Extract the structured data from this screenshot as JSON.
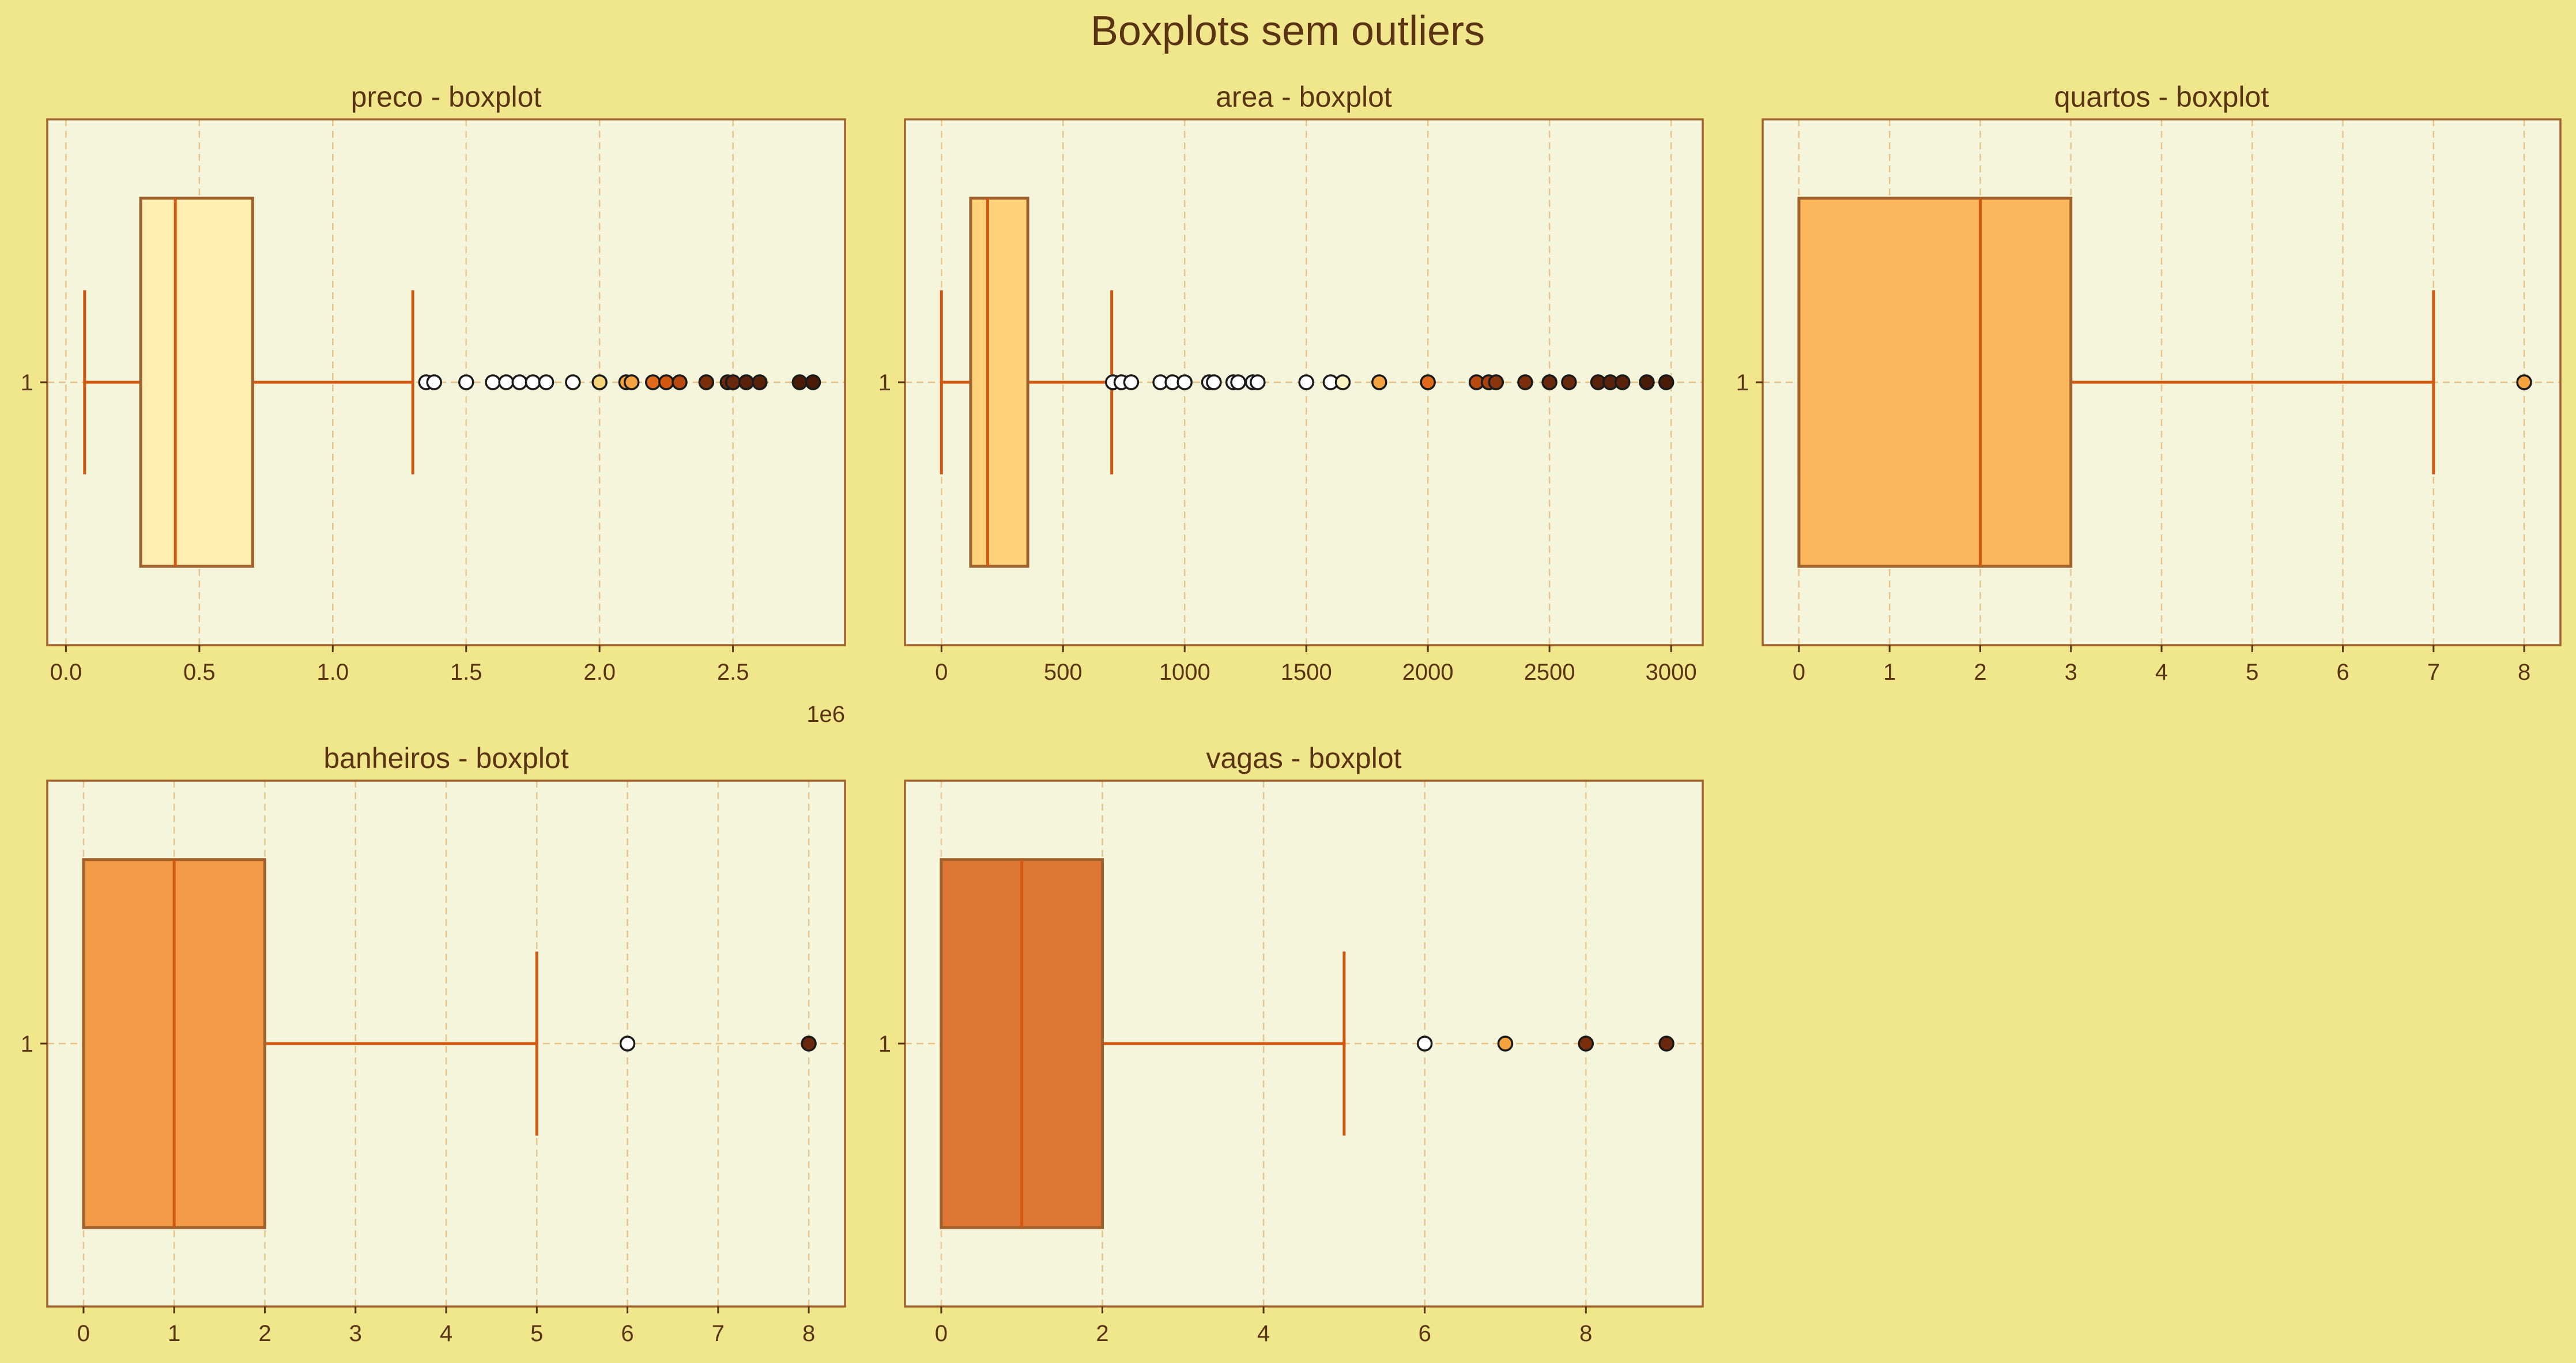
{
  "title": "Boxplots sem outliers",
  "colors": {
    "figure_bg": "#f0e68c",
    "axes_bg": "#f5f5dc",
    "spine": "#a0622d",
    "grid": "#e8c48a",
    "median_whisker": "#d2580f",
    "text": "#5a3312",
    "box_edge": "#a0622d"
  },
  "chart_data": [
    {
      "type": "boxplot",
      "title": "preco - boxplot",
      "orientation": "horizontal",
      "category": "1",
      "box_color": "#ffeeb0",
      "stats": {
        "whislo": 70000,
        "q1": 280000,
        "med": 410000,
        "q3": 700000,
        "whishi": 1300000
      },
      "outliers": [
        {
          "v": 1350000,
          "c": "#ffffff"
        },
        {
          "v": 1380000,
          "c": "#ffffff"
        },
        {
          "v": 1500000,
          "c": "#ffffff"
        },
        {
          "v": 1600000,
          "c": "#ffffff"
        },
        {
          "v": 1650000,
          "c": "#ffffff"
        },
        {
          "v": 1700000,
          "c": "#ffffff"
        },
        {
          "v": 1750000,
          "c": "#ffffff"
        },
        {
          "v": 1800000,
          "c": "#ffffff"
        },
        {
          "v": 1900000,
          "c": "#ffffff"
        },
        {
          "v": 2000000,
          "c": "#f5d27a"
        },
        {
          "v": 2100000,
          "c": "#f4a340"
        },
        {
          "v": 2120000,
          "c": "#f4a340"
        },
        {
          "v": 2200000,
          "c": "#e06a1c"
        },
        {
          "v": 2250000,
          "c": "#d2580f"
        },
        {
          "v": 2300000,
          "c": "#b84a10"
        },
        {
          "v": 2400000,
          "c": "#7a2e0c"
        },
        {
          "v": 2480000,
          "c": "#6a280c"
        },
        {
          "v": 2500000,
          "c": "#6a280c"
        },
        {
          "v": 2550000,
          "c": "#5a220a"
        },
        {
          "v": 2600000,
          "c": "#5a220a"
        },
        {
          "v": 2750000,
          "c": "#4a1c08"
        },
        {
          "v": 2800000,
          "c": "#4a1c08"
        }
      ],
      "xlim": [
        -70000,
        2920000
      ],
      "xticks": [
        0,
        500000,
        1000000,
        1500000,
        2000000,
        2500000
      ],
      "xtick_labels": [
        "0.0",
        "0.5",
        "1.0",
        "1.5",
        "2.0",
        "2.5"
      ],
      "offset_label": "1e6",
      "grid": true
    },
    {
      "type": "boxplot",
      "title": "area - boxplot",
      "orientation": "horizontal",
      "category": "1",
      "box_color": "#ffd27a",
      "stats": {
        "whislo": 0,
        "q1": 120,
        "med": 190,
        "q3": 355,
        "whishi": 700
      },
      "outliers": [
        {
          "v": 705,
          "c": "#ffffff"
        },
        {
          "v": 740,
          "c": "#ffffff"
        },
        {
          "v": 780,
          "c": "#ffffff"
        },
        {
          "v": 900,
          "c": "#ffffff"
        },
        {
          "v": 950,
          "c": "#ffffff"
        },
        {
          "v": 1000,
          "c": "#ffffff"
        },
        {
          "v": 1100,
          "c": "#ffffff"
        },
        {
          "v": 1120,
          "c": "#ffffff"
        },
        {
          "v": 1200,
          "c": "#ffffff"
        },
        {
          "v": 1220,
          "c": "#ffffff"
        },
        {
          "v": 1280,
          "c": "#ffffff"
        },
        {
          "v": 1300,
          "c": "#ffffff"
        },
        {
          "v": 1500,
          "c": "#ffffff"
        },
        {
          "v": 1600,
          "c": "#ffffff"
        },
        {
          "v": 1650,
          "c": "#fff2c0"
        },
        {
          "v": 1800,
          "c": "#f4a340"
        },
        {
          "v": 2000,
          "c": "#e06a1c"
        },
        {
          "v": 2200,
          "c": "#b84a10"
        },
        {
          "v": 2250,
          "c": "#a8420e"
        },
        {
          "v": 2280,
          "c": "#8a360c"
        },
        {
          "v": 2400,
          "c": "#7a2e0c"
        },
        {
          "v": 2500,
          "c": "#6a280c"
        },
        {
          "v": 2580,
          "c": "#6a280c"
        },
        {
          "v": 2700,
          "c": "#5a220a"
        },
        {
          "v": 2750,
          "c": "#5a220a"
        },
        {
          "v": 2800,
          "c": "#5a220a"
        },
        {
          "v": 2900,
          "c": "#4a1c08"
        },
        {
          "v": 2980,
          "c": "#4a1c08"
        }
      ],
      "xlim": [
        -150,
        3130
      ],
      "xticks": [
        0,
        500,
        1000,
        1500,
        2000,
        2500,
        3000
      ],
      "xtick_labels": [
        "0",
        "500",
        "1000",
        "1500",
        "2000",
        "2500",
        "3000"
      ],
      "grid": true
    },
    {
      "type": "boxplot",
      "title": "quartos - boxplot",
      "orientation": "horizontal",
      "category": "1",
      "box_color": "#fbb55a",
      "stats": {
        "whislo": 0,
        "q1": 0,
        "med": 2,
        "q3": 3,
        "whishi": 7
      },
      "outliers": [
        {
          "v": 8,
          "c": "#f4a340"
        }
      ],
      "xlim": [
        -0.4,
        8.4
      ],
      "xticks": [
        0,
        1,
        2,
        3,
        4,
        5,
        6,
        7,
        8
      ],
      "xtick_labels": [
        "0",
        "1",
        "2",
        "3",
        "4",
        "5",
        "6",
        "7",
        "8"
      ],
      "grid": true
    },
    {
      "type": "boxplot",
      "title": "banheiros - boxplot",
      "orientation": "horizontal",
      "category": "1",
      "box_color": "#f39a46",
      "stats": {
        "whislo": 0,
        "q1": 0,
        "med": 1,
        "q3": 2,
        "whishi": 5
      },
      "outliers": [
        {
          "v": 6,
          "c": "#ffffff"
        },
        {
          "v": 8,
          "c": "#6a280c"
        }
      ],
      "xlim": [
        -0.4,
        8.4
      ],
      "xticks": [
        0,
        1,
        2,
        3,
        4,
        5,
        6,
        7,
        8
      ],
      "xtick_labels": [
        "0",
        "1",
        "2",
        "3",
        "4",
        "5",
        "6",
        "7",
        "8"
      ],
      "grid": true
    },
    {
      "type": "boxplot",
      "title": "vagas - boxplot",
      "orientation": "horizontal",
      "category": "1",
      "box_color": "#de7734",
      "stats": {
        "whislo": 0,
        "q1": 0,
        "med": 1,
        "q3": 2,
        "whishi": 5
      },
      "outliers": [
        {
          "v": 6,
          "c": "#ffffff"
        },
        {
          "v": 7,
          "c": "#f4a340"
        },
        {
          "v": 8,
          "c": "#7a2e0c"
        },
        {
          "v": 9,
          "c": "#6a280c"
        }
      ],
      "xlim": [
        -0.45,
        9.45
      ],
      "xticks": [
        0,
        2,
        4,
        6,
        8
      ],
      "xtick_labels": [
        "0",
        "2",
        "4",
        "6",
        "8"
      ],
      "grid": true
    }
  ]
}
